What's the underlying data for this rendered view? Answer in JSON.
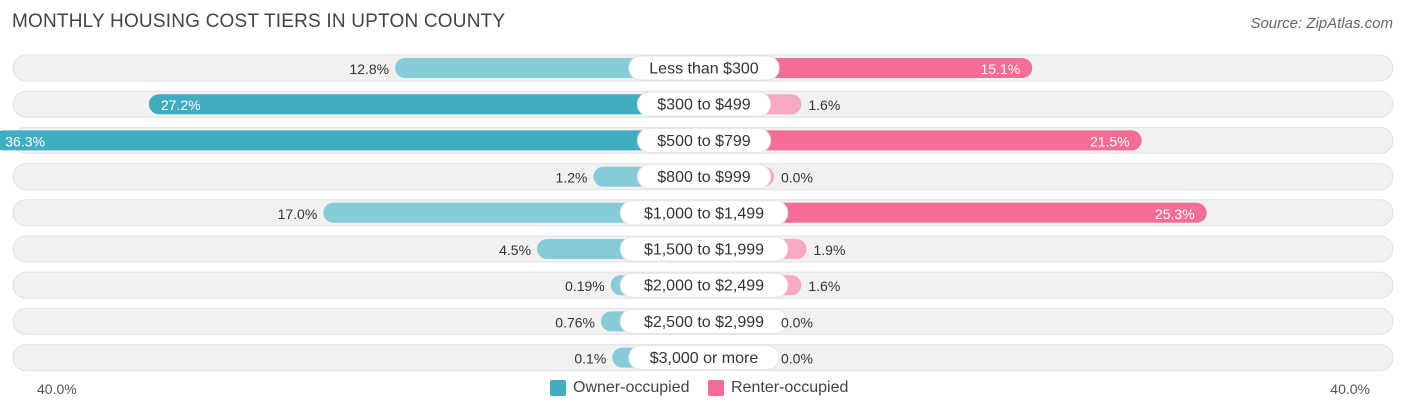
{
  "title": "MONTHLY HOUSING COST TIERS IN UPTON COUNTY",
  "source": "Source: ZipAtlas.com",
  "colors": {
    "owner": "#40aec0",
    "owner_light": "#86ccd8",
    "renter": "#f36d97",
    "renter_light": "#f7a8c2",
    "track": "#f1f1f1"
  },
  "legend": {
    "owner": "Owner-occupied",
    "renter": "Renter-occupied"
  },
  "axis": {
    "left_label": "40.0%",
    "right_label": "40.0%"
  },
  "chart_data": {
    "type": "bar",
    "orientation": "horizontal-diverging",
    "categories": [
      "Less than $300",
      "$300 to $499",
      "$500 to $799",
      "$800 to $999",
      "$1,000 to $1,499",
      "$1,500 to $1,999",
      "$2,000 to $2,499",
      "$2,500 to $2,999",
      "$3,000 or more"
    ],
    "series": [
      {
        "name": "Owner-occupied",
        "values": [
          12.8,
          27.2,
          36.3,
          1.2,
          17.0,
          4.5,
          0.19,
          0.76,
          0.1
        ],
        "labels": [
          "12.8%",
          "27.2%",
          "36.3%",
          "1.2%",
          "17.0%",
          "4.5%",
          "0.19%",
          "0.76%",
          "0.1%"
        ]
      },
      {
        "name": "Renter-occupied",
        "values": [
          15.1,
          1.6,
          21.5,
          0.0,
          25.3,
          1.9,
          1.6,
          0.0,
          0.0
        ],
        "labels": [
          "15.1%",
          "1.6%",
          "21.5%",
          "0.0%",
          "25.3%",
          "1.9%",
          "1.6%",
          "0.0%",
          "0.0%"
        ]
      }
    ],
    "xlim": [
      -40,
      40
    ],
    "legend_position": "bottom-center"
  }
}
